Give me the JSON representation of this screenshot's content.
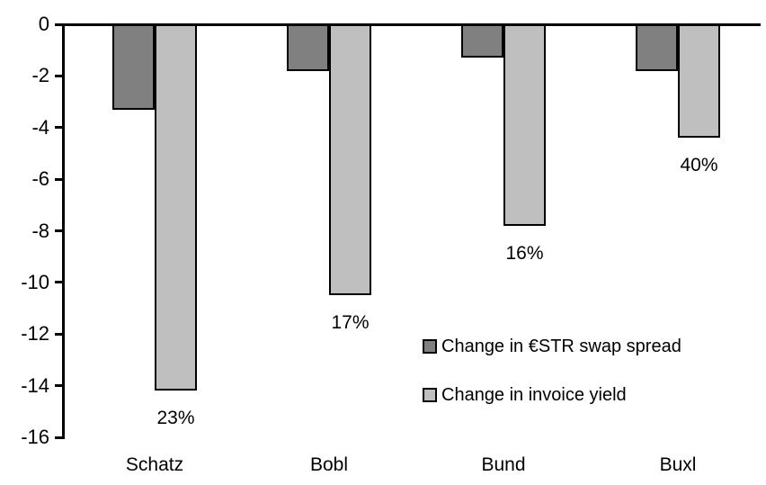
{
  "chart_data": {
    "type": "bar",
    "orientation": "vertical-negative",
    "title": "",
    "xlabel": "",
    "ylabel": "",
    "categories": [
      "Schatz",
      "Bobl",
      "Bund",
      "Buxl"
    ],
    "series": [
      {
        "name": "Change in €STR swap spread",
        "color": "#808080",
        "values": [
          -3.3,
          -1.8,
          -1.3,
          -1.8
        ]
      },
      {
        "name": "Change in invoice yield",
        "color": "#BFBFBF",
        "values": [
          -14.2,
          -10.5,
          -7.8,
          -4.4
        ],
        "point_labels": [
          "23%",
          "17%",
          "16%",
          "40%"
        ]
      }
    ],
    "ylim": [
      -16,
      0
    ],
    "y_ticks": [
      0,
      -2,
      -4,
      -6,
      -8,
      -10,
      -12,
      -14,
      -16
    ],
    "grid": false,
    "bar_outline_color": "#000000",
    "axis_color": "#000000",
    "legend_position": "inside-center-right"
  }
}
